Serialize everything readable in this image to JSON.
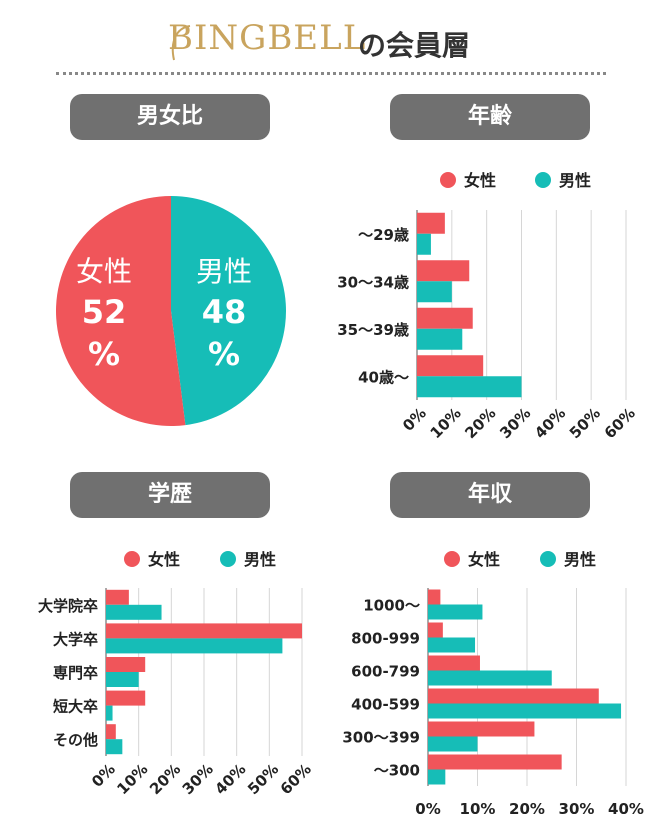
{
  "header": {
    "brand": "BINGBELL",
    "suffix": "の会員層"
  },
  "sections": {
    "gender": "男女比",
    "age": "年齢",
    "education": "学歴",
    "income": "年収"
  },
  "colors": {
    "female": "#f0555a",
    "male": "#16bdb7",
    "pill": "#707070"
  },
  "chart_data": [
    {
      "type": "pie",
      "title": "男女比",
      "slices": [
        {
          "name": "女性",
          "value": 52,
          "label": "%",
          "color": "#f0555a"
        },
        {
          "name": "男性",
          "value": 48,
          "label": "%",
          "color": "#16bdb7"
        }
      ]
    },
    {
      "type": "bar",
      "orientation": "horizontal",
      "title": "年齢",
      "categories": [
        "～29歳",
        "30～34歳",
        "35～39歳",
        "40歳～"
      ],
      "series": [
        {
          "name": "女性",
          "values": [
            8,
            15,
            16,
            19
          ],
          "color": "#f0555a"
        },
        {
          "name": "男性",
          "values": [
            4,
            10,
            13,
            30
          ],
          "color": "#16bdb7"
        }
      ],
      "xlim": [
        0,
        60
      ],
      "ticks": [
        "0%",
        "10%",
        "20%",
        "30%",
        "40%",
        "50%",
        "60%"
      ],
      "legend": "top"
    },
    {
      "type": "bar",
      "orientation": "horizontal",
      "title": "学歴",
      "categories": [
        "大学院卒",
        "大学卒",
        "専門卒",
        "短大卒",
        "その他"
      ],
      "series": [
        {
          "name": "女性",
          "values": [
            7,
            60,
            12,
            12,
            3
          ],
          "color": "#f0555a"
        },
        {
          "name": "男性",
          "values": [
            17,
            54,
            10,
            2,
            5
          ],
          "color": "#16bdb7"
        }
      ],
      "xlim": [
        0,
        60
      ],
      "ticks": [
        "0%",
        "10%",
        "20%",
        "30%",
        "40%",
        "50%",
        "60%"
      ],
      "legend": "top"
    },
    {
      "type": "bar",
      "orientation": "horizontal",
      "title": "年収",
      "categories": [
        "1000～",
        "800-999",
        "600-799",
        "400-599",
        "300～399",
        "～300"
      ],
      "series": [
        {
          "name": "女性",
          "values": [
            2.5,
            3,
            10.5,
            34.5,
            21.5,
            27
          ],
          "color": "#f0555a"
        },
        {
          "name": "男性",
          "values": [
            11,
            9.5,
            25,
            39,
            10,
            3.5
          ],
          "color": "#16bdb7"
        }
      ],
      "xlim": [
        0,
        40
      ],
      "ticks": [
        "0%",
        "10%",
        "20%",
        "30%",
        "40%"
      ],
      "legend": "top"
    }
  ]
}
